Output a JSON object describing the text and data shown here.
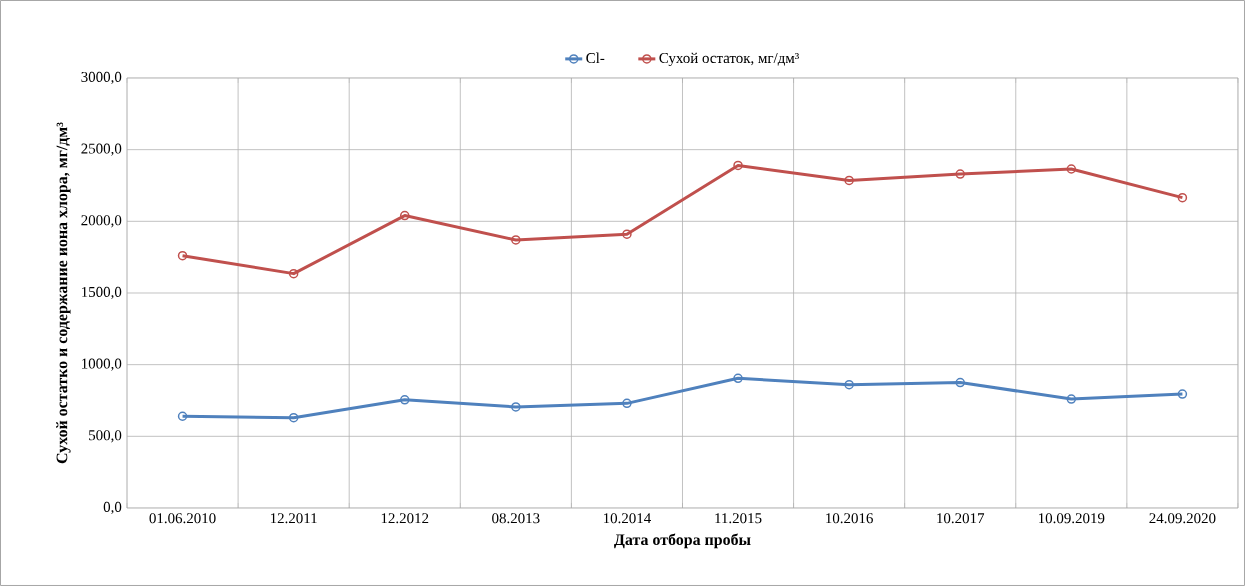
{
  "chart_data": {
    "type": "line",
    "xlabel": "Дата отбора пробы",
    "ylabel": "Сухой остатко и содержание иона хлора, мг/дм³",
    "categories": [
      "01.06.2010",
      "12.2011",
      "12.2012",
      "08.2013",
      "10.2014",
      "11.2015",
      "10.2016",
      "10.2017",
      "10.09.2019",
      "24.09.2020"
    ],
    "series": [
      {
        "name": "Cl-",
        "color": "#4f81bd",
        "values": [
          640,
          630,
          755,
          705,
          730,
          905,
          860,
          875,
          760,
          795
        ]
      },
      {
        "name": "Сухой остаток, мг/дм³",
        "color": "#c0504d",
        "values": [
          1760,
          1635,
          2040,
          1870,
          1910,
          2390,
          2285,
          2330,
          2365,
          2165
        ]
      }
    ],
    "ylim": [
      0,
      3000
    ],
    "yticks": [
      {
        "value": 0,
        "label": "0,0"
      },
      {
        "value": 500,
        "label": "500,0"
      },
      {
        "value": 1000,
        "label": "1000,0"
      },
      {
        "value": 1500,
        "label": "1500,0"
      },
      {
        "value": 2000,
        "label": "2000,0"
      },
      {
        "value": 2500,
        "label": "2500,0"
      },
      {
        "value": 3000,
        "label": "3000,0"
      }
    ],
    "grid": true,
    "legend": "top",
    "marker": "circle",
    "line_style": "solid"
  }
}
